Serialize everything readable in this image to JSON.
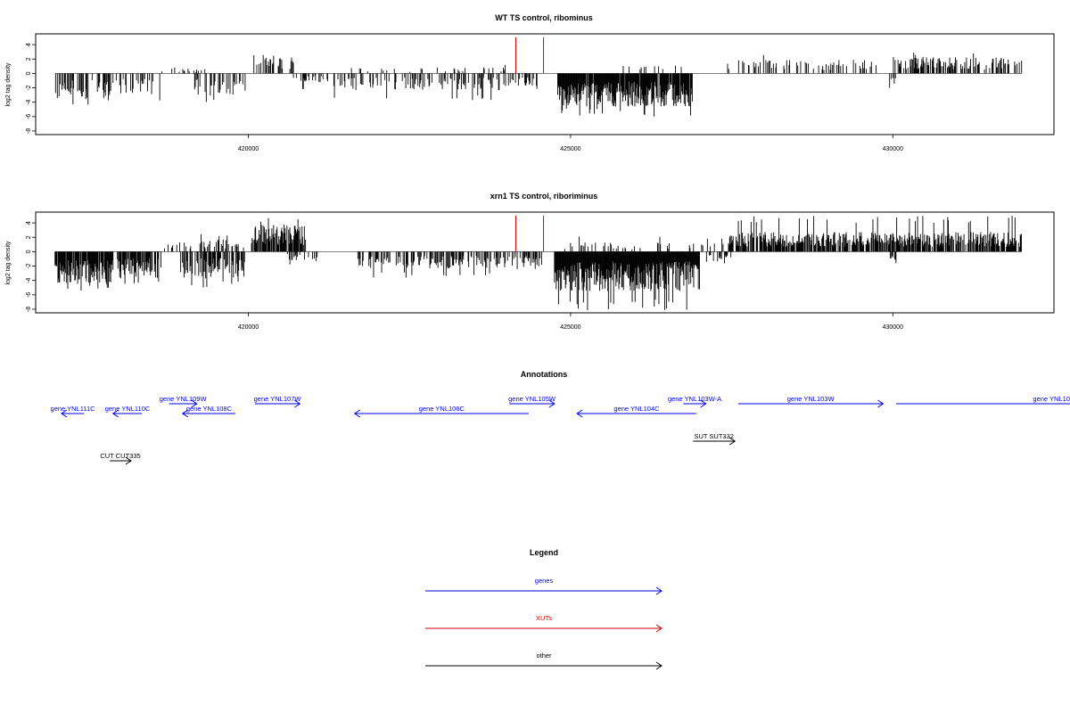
{
  "chart_data": [
    {
      "type": "bar",
      "title": "WT TS control, ribominus",
      "ylabel": "log2 tag density",
      "xlabel": "",
      "xlim": [
        416700,
        432500
      ],
      "ylim": [
        -8.5,
        5.5
      ],
      "x_ticks": [
        {
          "value": 420000,
          "label": "420000"
        },
        {
          "value": 425000,
          "label": "425000"
        },
        {
          "value": 430000,
          "label": "430000"
        }
      ],
      "y_ticks": [
        {
          "value": 4,
          "label": "4"
        },
        {
          "value": 2,
          "label": "2"
        },
        {
          "value": 0,
          "label": "0"
        },
        {
          "value": -2,
          "label": "-2"
        },
        {
          "value": -4,
          "label": "-4"
        },
        {
          "value": -6,
          "label": "-6"
        },
        {
          "value": -8,
          "label": "-8"
        }
      ],
      "highlight_lines": [
        {
          "x": 424150,
          "color": "#cc0000"
        },
        {
          "x": 424580,
          "color": "#cc0000"
        }
      ],
      "segments": [
        {
          "start": 417000,
          "end": 417900,
          "sign": -1,
          "mean": 2.6,
          "max": 5.0,
          "density": 0.45
        },
        {
          "start": 417950,
          "end": 418650,
          "sign": -1,
          "mean": 2.0,
          "max": 4.5,
          "density": 0.35
        },
        {
          "start": 418650,
          "end": 419400,
          "sign": 1,
          "mean": 0.6,
          "max": 1.2,
          "density": 0.1
        },
        {
          "start": 419050,
          "end": 419950,
          "sign": -1,
          "mean": 2.2,
          "max": 4.0,
          "density": 0.35
        },
        {
          "start": 420050,
          "end": 420700,
          "sign": 1,
          "mean": 1.8,
          "max": 3.2,
          "density": 0.4
        },
        {
          "start": 420700,
          "end": 421300,
          "sign": -1,
          "mean": 1.0,
          "max": 2.2,
          "density": 0.2
        },
        {
          "start": 421300,
          "end": 424100,
          "sign": -1,
          "mean": 1.6,
          "max": 3.8,
          "density": 0.3
        },
        {
          "start": 421500,
          "end": 424000,
          "sign": 1,
          "mean": 0.6,
          "max": 1.3,
          "density": 0.08
        },
        {
          "start": 424100,
          "end": 424500,
          "sign": -1,
          "mean": 1.2,
          "max": 2.4,
          "density": 0.3
        },
        {
          "start": 424800,
          "end": 426900,
          "sign": -1,
          "mean": 3.2,
          "max": 6.0,
          "density": 0.95
        },
        {
          "start": 425700,
          "end": 426800,
          "sign": 1,
          "mean": 0.8,
          "max": 1.5,
          "density": 0.1
        },
        {
          "start": 427400,
          "end": 429800,
          "sign": 1,
          "mean": 1.3,
          "max": 3.0,
          "density": 0.25
        },
        {
          "start": 430000,
          "end": 432000,
          "sign": 1,
          "mean": 1.6,
          "max": 3.0,
          "density": 0.45
        },
        {
          "start": 429950,
          "end": 430050,
          "sign": -1,
          "mean": 1.5,
          "max": 2.0,
          "density": 0.5
        }
      ]
    },
    {
      "type": "bar",
      "title": "xrn1 TS control, riboriminus",
      "ylabel": "log2 tag density",
      "xlabel": "",
      "xlim": [
        416700,
        432500
      ],
      "ylim": [
        -8.5,
        5.5
      ],
      "x_ticks": [
        {
          "value": 420000,
          "label": "420000"
        },
        {
          "value": 425000,
          "label": "425000"
        },
        {
          "value": 430000,
          "label": "430000"
        }
      ],
      "y_ticks": [
        {
          "value": 4,
          "label": "4"
        },
        {
          "value": 2,
          "label": "2"
        },
        {
          "value": 0,
          "label": "0"
        },
        {
          "value": -2,
          "label": "-2"
        },
        {
          "value": -4,
          "label": "-4"
        },
        {
          "value": -6,
          "label": "-6"
        },
        {
          "value": -8,
          "label": "-8"
        }
      ],
      "highlight_lines": [
        {
          "x": 424150,
          "color": "#cc0000"
        },
        {
          "x": 424580,
          "color": "#cc0000"
        }
      ],
      "segments": [
        {
          "start": 417000,
          "end": 417900,
          "sign": -1,
          "mean": 3.0,
          "max": 5.5,
          "density": 0.9
        },
        {
          "start": 417950,
          "end": 418650,
          "sign": -1,
          "mean": 2.5,
          "max": 4.5,
          "density": 0.7
        },
        {
          "start": 418700,
          "end": 419950,
          "sign": 1,
          "mean": 1.2,
          "max": 2.6,
          "density": 0.3
        },
        {
          "start": 418950,
          "end": 419950,
          "sign": -1,
          "mean": 2.6,
          "max": 5.0,
          "density": 0.6
        },
        {
          "start": 420050,
          "end": 420900,
          "sign": 1,
          "mean": 2.6,
          "max": 4.8,
          "density": 0.8
        },
        {
          "start": 420600,
          "end": 421100,
          "sign": -1,
          "mean": 0.9,
          "max": 2.0,
          "density": 0.3
        },
        {
          "start": 421700,
          "end": 424100,
          "sign": -1,
          "mean": 1.6,
          "max": 3.6,
          "density": 0.45
        },
        {
          "start": 424100,
          "end": 424550,
          "sign": -1,
          "mean": 1.4,
          "max": 2.6,
          "density": 0.5
        },
        {
          "start": 424750,
          "end": 427000,
          "sign": -1,
          "mean": 3.8,
          "max": 8.2,
          "density": 1.0
        },
        {
          "start": 424900,
          "end": 427400,
          "sign": 1,
          "mean": 0.9,
          "max": 2.2,
          "density": 0.15
        },
        {
          "start": 427100,
          "end": 427500,
          "sign": -1,
          "mean": 1.0,
          "max": 2.0,
          "density": 0.3
        },
        {
          "start": 427450,
          "end": 432000,
          "sign": 1,
          "mean": 1.9,
          "max": 5.0,
          "density": 0.75
        },
        {
          "start": 429950,
          "end": 430050,
          "sign": -1,
          "mean": 1.2,
          "max": 1.8,
          "density": 0.5
        }
      ]
    }
  ],
  "annotations": {
    "title": "Annotations",
    "xlim": [
      416700,
      432500
    ],
    "features": [
      {
        "label": "gene YNL111C",
        "start": 417100,
        "end": 417450,
        "dir": "left",
        "row": 2,
        "color": "#0000ee"
      },
      {
        "label": "gene YNL110C",
        "start": 417900,
        "end": 418350,
        "dir": "left",
        "row": 2,
        "color": "#0000ee"
      },
      {
        "label": "gene YNL109W",
        "start": 418770,
        "end": 419200,
        "dir": "right",
        "row": 1,
        "color": "#0000ee"
      },
      {
        "label": "gene YNL108C",
        "start": 418980,
        "end": 419800,
        "dir": "left",
        "row": 2,
        "color": "#0000ee"
      },
      {
        "label": "gene YNL107W",
        "start": 420100,
        "end": 420800,
        "dir": "right",
        "row": 1,
        "color": "#0000ee"
      },
      {
        "label": "gene YNL106C",
        "start": 421650,
        "end": 424350,
        "dir": "left",
        "row": 2,
        "color": "#0000ee"
      },
      {
        "label": "gene YNL105W",
        "start": 424050,
        "end": 424750,
        "dir": "right",
        "row": 1,
        "color": "#0000ee"
      },
      {
        "label": "gene YNL104C",
        "start": 425100,
        "end": 426950,
        "dir": "left",
        "row": 2,
        "color": "#0000ee"
      },
      {
        "label": "gene YNL103W-A",
        "start": 426750,
        "end": 427100,
        "dir": "right",
        "row": 1,
        "color": "#0000ee"
      },
      {
        "label": "gene YNL103W",
        "start": 427600,
        "end": 429850,
        "dir": "right",
        "row": 1,
        "color": "#0000ee"
      },
      {
        "label": "gene YNL10",
        "start": 430050,
        "end": 432900,
        "dir": "right",
        "row": 1,
        "color": "#0000ee"
      },
      {
        "label": "SUT SUT332",
        "start": 426900,
        "end": 427550,
        "dir": "right",
        "row": 3,
        "color": "#000000"
      },
      {
        "label": "CUT CUT335",
        "start": 417850,
        "end": 418180,
        "dir": "right",
        "row": 4,
        "color": "#000000"
      }
    ]
  },
  "legend": {
    "title": "Legend",
    "items": [
      {
        "label": "genes",
        "color": "#0000ee"
      },
      {
        "label": "XUTs",
        "color": "#cc0000"
      },
      {
        "label": "other",
        "color": "#000000"
      }
    ]
  }
}
